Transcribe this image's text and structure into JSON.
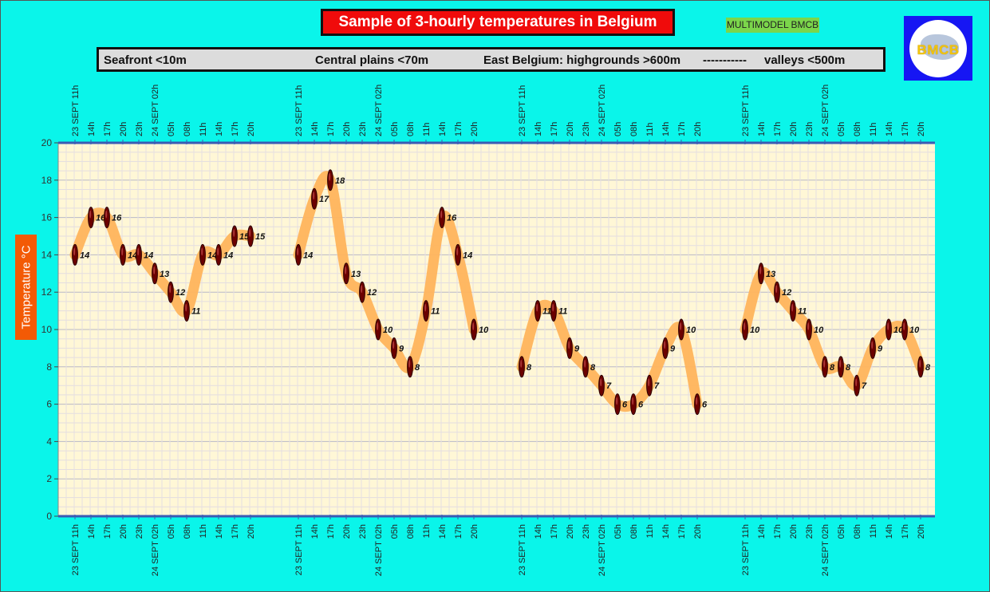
{
  "title": "Sample of 3-hourly temperatures in Belgium",
  "badge": "MULTIMODEL BMCB",
  "logo_text": "BMCB",
  "legend": {
    "seafront": "Seafront <10m",
    "central": "Central plains <70m",
    "east": "East Belgium: highgrounds >600m",
    "dashes": "-----------",
    "valleys": "valleys <500m"
  },
  "colors": {
    "background": "#0af5ea",
    "plot_area": "#fff7d6",
    "band": "#ffb45c",
    "marker": "#6b0000",
    "axis": "#3b5bb3"
  },
  "chart_data": {
    "type": "line",
    "title": "Sample of 3-hourly temperatures in Belgium",
    "ylabel": "Temperature   °C",
    "ylim": [
      0,
      20
    ],
    "yticks": [
      0,
      2,
      4,
      6,
      8,
      10,
      12,
      14,
      16,
      18,
      20
    ],
    "grid": true,
    "categories": [
      "23 SEPT 11h",
      "14h",
      "17h",
      "20h",
      "23h",
      "24 SEPT 02h",
      "05h",
      "08h",
      "11h",
      "14h",
      "17h",
      "20h"
    ],
    "series": [
      {
        "name": "Seafront <10m",
        "values": [
          14,
          16,
          16,
          14,
          14,
          13,
          12,
          11,
          14,
          14,
          15,
          15
        ]
      },
      {
        "name": "Central plains <70m",
        "values": [
          14,
          17,
          18,
          13,
          12,
          10,
          9,
          8,
          11,
          16,
          14,
          10
        ]
      },
      {
        "name": "East Belgium: highgrounds >600m",
        "values": [
          8,
          11,
          11,
          9,
          8,
          7,
          6,
          6,
          7,
          9,
          10,
          6
        ]
      },
      {
        "name": "valleys <500m",
        "values": [
          10,
          13,
          12,
          11,
          10,
          8,
          8,
          7,
          9,
          10,
          10,
          8
        ]
      }
    ]
  }
}
